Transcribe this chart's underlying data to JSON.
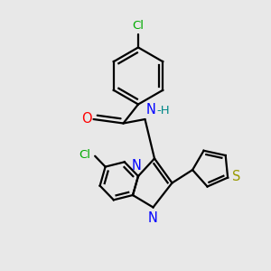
{
  "bg_color": "#e8e8e8",
  "bond_color": "#000000",
  "bond_width": 1.6,
  "atom_colors": {
    "Cl": "#00aa00",
    "O": "#ff0000",
    "N": "#0000ff",
    "H": "#008888",
    "S": "#999900"
  },
  "font_size": 9.5,
  "fig_size": [
    3.0,
    3.0
  ],
  "dpi": 100
}
